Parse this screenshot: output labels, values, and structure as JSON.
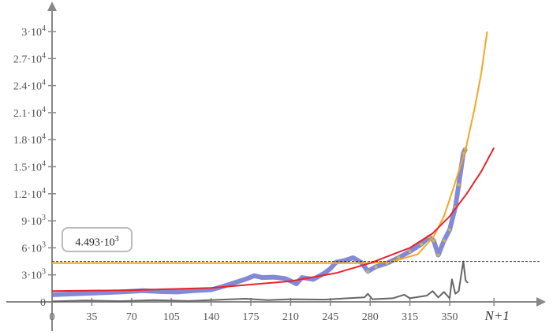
{
  "chart_data": {
    "type": "line",
    "xlabel": "N+1",
    "xlim": [
      0,
      430
    ],
    "ylim": [
      0,
      32000
    ],
    "grid": false,
    "x_ticks": [
      "0",
      "35",
      "70",
      "105",
      "140",
      "175",
      "210",
      "245",
      "280",
      "315",
      "350"
    ],
    "x_tick_values": [
      0,
      35,
      70,
      105,
      140,
      175,
      210,
      245,
      280,
      315,
      350
    ],
    "x_end_label_value": 389,
    "y_ticks": [
      {
        "v": 0,
        "m": "0",
        "e": ""
      },
      {
        "v": 3000,
        "m": "3·10",
        "e": "3"
      },
      {
        "v": 6000,
        "m": "6·10",
        "e": "3"
      },
      {
        "v": 9000,
        "m": "9·10",
        "e": "3"
      },
      {
        "v": 12000,
        "m": "1.2·10",
        "e": "4"
      },
      {
        "v": 15000,
        "m": "1.5·10",
        "e": "4"
      },
      {
        "v": 18000,
        "m": "1.8·10",
        "e": "4"
      },
      {
        "v": 21000,
        "m": "2.1·10",
        "e": "4"
      },
      {
        "v": 24000,
        "m": "2.4·10",
        "e": "4"
      },
      {
        "v": 27000,
        "m": "2.7·10",
        "e": "4"
      },
      {
        "v": 30000,
        "m": "3·10",
        "e": "4"
      }
    ],
    "readout": {
      "value": 4493,
      "label": "4.493·10",
      "exp": "3"
    },
    "series": [
      {
        "color": "#6f74d0",
        "style": "markers",
        "points": [
          [
            0,
            800
          ],
          [
            20,
            900
          ],
          [
            40,
            1000
          ],
          [
            60,
            1100
          ],
          [
            80,
            1250
          ],
          [
            95,
            1150
          ],
          [
            110,
            1100
          ],
          [
            125,
            1250
          ],
          [
            140,
            1350
          ],
          [
            150,
            1700
          ],
          [
            160,
            2100
          ],
          [
            170,
            2500
          ],
          [
            178,
            2900
          ],
          [
            185,
            2700
          ],
          [
            195,
            2750
          ],
          [
            205,
            2600
          ],
          [
            212,
            2200
          ],
          [
            215,
            2000
          ],
          [
            220,
            2700
          ],
          [
            230,
            2500
          ],
          [
            240,
            3200
          ],
          [
            245,
            3700
          ],
          [
            250,
            4400
          ],
          [
            258,
            4600
          ],
          [
            265,
            4900
          ],
          [
            272,
            4400
          ],
          [
            278,
            3400
          ],
          [
            285,
            3900
          ],
          [
            295,
            4300
          ],
          [
            305,
            4900
          ],
          [
            315,
            5600
          ],
          [
            325,
            6400
          ],
          [
            332,
            7200
          ],
          [
            336,
            6800
          ],
          [
            340,
            5200
          ],
          [
            345,
            6800
          ],
          [
            350,
            8000
          ],
          [
            355,
            10500
          ],
          [
            358,
            13000
          ],
          [
            362,
            16500
          ],
          [
            364,
            17000
          ]
        ]
      },
      {
        "color": "#f5a623",
        "style": "line",
        "points": [
          [
            0,
            4300
          ],
          [
            280,
            4300
          ],
          [
            300,
            4500
          ],
          [
            322,
            5300
          ],
          [
            336,
            7260
          ],
          [
            345,
            9500
          ],
          [
            353,
            12500
          ],
          [
            364,
            16900
          ],
          [
            372,
            21500
          ],
          [
            378,
            25500
          ],
          [
            383,
            30000
          ]
        ]
      },
      {
        "color": "#e8242a",
        "style": "line",
        "points": [
          [
            0,
            1200
          ],
          [
            70,
            1300
          ],
          [
            140,
            1550
          ],
          [
            210,
            2300
          ],
          [
            250,
            3200
          ],
          [
            280,
            4300
          ],
          [
            315,
            6000
          ],
          [
            335,
            7600
          ],
          [
            350,
            9500
          ],
          [
            365,
            12000
          ],
          [
            378,
            14500
          ],
          [
            389,
            17100
          ]
        ]
      },
      {
        "color": "#666666",
        "style": "line",
        "points": [
          [
            0,
            50
          ],
          [
            30,
            150
          ],
          [
            60,
            80
          ],
          [
            90,
            200
          ],
          [
            120,
            100
          ],
          [
            150,
            250
          ],
          [
            170,
            350
          ],
          [
            190,
            200
          ],
          [
            210,
            300
          ],
          [
            240,
            250
          ],
          [
            260,
            400
          ],
          [
            275,
            500
          ],
          [
            278,
            900
          ],
          [
            282,
            300
          ],
          [
            300,
            400
          ],
          [
            310,
            800
          ],
          [
            315,
            400
          ],
          [
            330,
            700
          ],
          [
            335,
            1200
          ],
          [
            340,
            500
          ],
          [
            345,
            1100
          ],
          [
            350,
            400
          ],
          [
            352,
            2500
          ],
          [
            355,
            900
          ],
          [
            358,
            1200
          ],
          [
            362,
            4493
          ],
          [
            364,
            2400
          ],
          [
            366,
            2100
          ]
        ]
      },
      {
        "color": "#222222",
        "style": "dashed",
        "points": [
          [
            0,
            4493
          ],
          [
            430,
            4493
          ]
        ]
      }
    ]
  }
}
